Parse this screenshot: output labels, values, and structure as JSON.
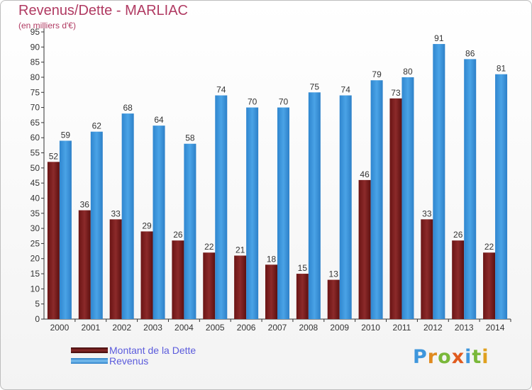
{
  "header": {
    "title": "Revenus/Dette - MARLIAC",
    "subtitle": "(en milliers d'€)"
  },
  "colors": {
    "dette": "#7a1f1f",
    "revenus": "#3e96dc",
    "title": "#b03a62",
    "legend_text": "#5b5bdc"
  },
  "legend": {
    "items": [
      {
        "label": "Montant de la Dette",
        "color": "#7a1f1f"
      },
      {
        "label": "Revenus",
        "color": "#3e96dc"
      }
    ]
  },
  "logo": {
    "text": "Proxiti"
  },
  "chart_data": {
    "type": "bar",
    "title": "Revenus/Dette - MARLIAC",
    "subtitle": "(en milliers d'€)",
    "categories": [
      "2000",
      "2001",
      "2002",
      "2003",
      "2004",
      "2005",
      "2006",
      "2007",
      "2008",
      "2009",
      "2010",
      "2011",
      "2012",
      "2013",
      "2014"
    ],
    "series": [
      {
        "name": "Montant de la Dette",
        "values": [
          52,
          36,
          33,
          29,
          26,
          22,
          21,
          18,
          15,
          13,
          46,
          73,
          33,
          26,
          22
        ]
      },
      {
        "name": "Revenus",
        "values": [
          59,
          62,
          68,
          64,
          58,
          74,
          70,
          70,
          75,
          74,
          79,
          80,
          91,
          86,
          81
        ]
      }
    ],
    "ylim": [
      0,
      95
    ],
    "ytick_step": 5,
    "grid": false,
    "legend_position": "bottom-left",
    "data_labels": true
  }
}
